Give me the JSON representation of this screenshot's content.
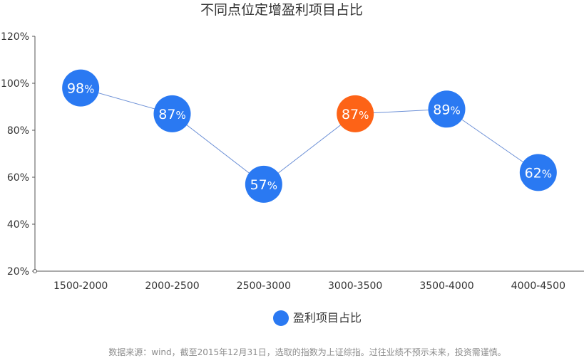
{
  "colors": {
    "series": "#2a79f2",
    "highlight": "#fd6317",
    "line": "#6b8fd6",
    "text": "#333333",
    "source_text": "#8c8c8c"
  },
  "chart_data": {
    "type": "line",
    "title": "不同点位定增盈利项目占比",
    "categories": [
      "1500-2000",
      "2000-2500",
      "2500-3000",
      "3000-3500",
      "3500-4000",
      "4000-4500"
    ],
    "series": [
      {
        "name": "盈利项目占比",
        "values": [
          98,
          87,
          57,
          87,
          89,
          62
        ]
      }
    ],
    "highlight_index": 3,
    "ylim": [
      20,
      120
    ],
    "yticks": [
      "20%",
      "40%",
      "60%",
      "80%",
      "100%",
      "120%"
    ],
    "y_unit": "%",
    "grid": false,
    "legend_position": "bottom-center",
    "xlabel": "",
    "ylabel": ""
  },
  "source_note": "数据来源：wind，截至2015年12月31日，选取的指数为上证综指。过往业绩不预示未来，投资需谨慎。"
}
